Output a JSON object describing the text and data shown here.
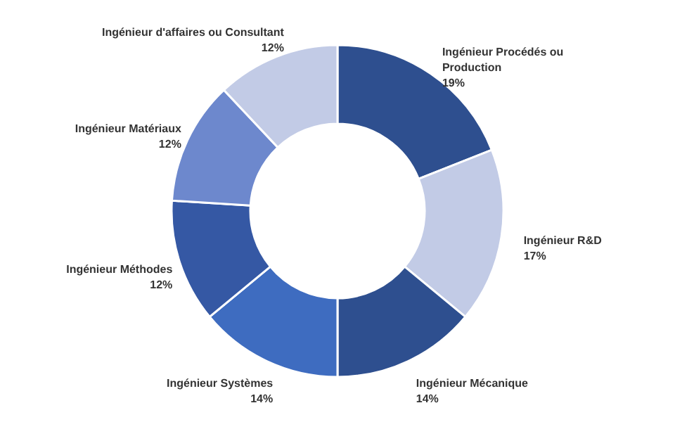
{
  "chart_data": {
    "type": "donut",
    "categories": [
      "Ingénieur Procédés ou Production",
      "Ingénieur R&D",
      "Ingénieur Mécanique",
      "Ingénieur Systèmes",
      "Ingénieur Méthodes",
      "Ingénieur Matériaux",
      "Ingénieur d'affaires ou Consultant"
    ],
    "values": [
      19,
      17,
      14,
      14,
      12,
      12,
      12
    ],
    "value_labels": [
      "19%",
      "17%",
      "14%",
      "14%",
      "12%",
      "12%",
      "12%"
    ],
    "colors": [
      "#2e4f8f",
      "#c2cbe6",
      "#2e4f8f",
      "#3e6cc0",
      "#3558a4",
      "#6d88cd",
      "#c2cbe6"
    ]
  }
}
